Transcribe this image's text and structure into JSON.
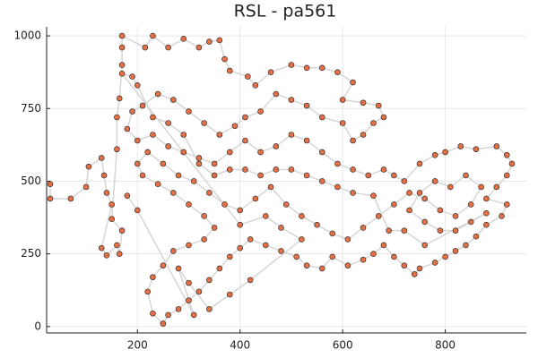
{
  "chart_data": {
    "type": "scatter",
    "title": "RSL - pa561",
    "xlim": [
      23,
      958
    ],
    "ylim": [
      -22,
      1031
    ],
    "xticks": [
      200,
      400,
      600,
      800
    ],
    "yticks": [
      0,
      250,
      500,
      750,
      1000
    ],
    "grid": true,
    "line_color": "#d6d6d6",
    "series": [
      {
        "color": "#e26f46",
        "x": [
          30,
          30,
          70,
          100,
          105,
          130,
          135,
          140,
          150,
          130,
          140,
          160,
          165,
          170,
          150,
          160,
          160,
          165,
          170,
          170,
          170,
          215,
          230,
          260,
          290,
          320,
          340,
          360,
          370,
          380,
          415,
          430,
          460,
          500,
          530,
          560,
          590,
          620,
          600,
          640,
          670,
          680,
          660,
          640,
          620,
          600,
          560,
          530,
          500,
          470,
          440,
          410,
          390,
          360,
          330,
          300,
          270,
          240,
          210,
          190,
          180,
          200,
          230,
          260,
          290,
          320,
          350,
          380,
          410,
          440,
          470,
          500,
          530,
          560,
          590,
          620,
          650,
          680,
          700,
          720,
          750,
          780,
          800,
          830,
          860,
          900,
          920,
          930,
          920,
          900,
          880,
          920,
          910,
          880,
          860,
          840,
          820,
          800,
          780,
          750,
          740,
          720,
          700,
          680,
          660,
          640,
          610,
          580,
          560,
          530,
          510,
          480,
          450,
          420,
          400,
          380,
          360,
          340,
          320,
          300,
          280,
          260,
          250,
          230,
          220,
          230,
          250,
          270,
          300,
          330,
          350,
          330,
          300,
          270,
          240,
          210,
          200,
          220,
          250,
          280,
          310,
          340,
          370,
          400,
          430,
          460,
          490,
          520,
          550,
          580,
          610,
          640,
          670,
          700,
          730,
          760,
          790,
          820,
          850,
          870,
          840,
          810,
          780,
          750,
          730,
          760,
          790,
          820,
          850,
          880,
          760,
          720,
          690,
          660,
          620,
          590,
          560,
          530,
          500,
          470,
          440,
          410,
          380,
          350,
          320,
          290,
          260,
          230,
          200,
          190,
          170,
          400,
          450,
          480,
          520,
          420,
          380,
          340,
          300,
          280,
          310,
          200,
          180
        ],
        "values": [
          490,
          440,
          440,
          480,
          550,
          580,
          520,
          460,
          420,
          270,
          245,
          280,
          250,
          330,
          370,
          610,
          720,
          785,
          900,
          960,
          1000,
          960,
          1000,
          960,
          990,
          960,
          980,
          985,
          920,
          880,
          860,
          830,
          875,
          900,
          890,
          890,
          875,
          840,
          780,
          770,
          760,
          720,
          700,
          660,
          640,
          700,
          720,
          760,
          780,
          800,
          740,
          720,
          690,
          660,
          700,
          740,
          780,
          800,
          760,
          740,
          680,
          640,
          660,
          620,
          600,
          580,
          560,
          600,
          640,
          600,
          620,
          660,
          640,
          600,
          560,
          540,
          520,
          540,
          520,
          500,
          560,
          590,
          600,
          620,
          610,
          620,
          590,
          560,
          520,
          480,
          440,
          420,
          380,
          350,
          310,
          280,
          260,
          240,
          220,
          200,
          180,
          210,
          240,
          280,
          250,
          230,
          210,
          240,
          200,
          210,
          240,
          260,
          280,
          300,
          270,
          240,
          200,
          160,
          120,
          90,
          60,
          40,
          10,
          45,
          120,
          170,
          210,
          260,
          280,
          300,
          340,
          380,
          420,
          460,
          490,
          520,
          560,
          600,
          560,
          520,
          500,
          460,
          420,
          400,
          440,
          480,
          420,
          380,
          350,
          320,
          300,
          340,
          380,
          420,
          460,
          440,
          400,
          380,
          420,
          480,
          520,
          480,
          500,
          460,
          400,
          360,
          330,
          330,
          360,
          390,
          280,
          330,
          330,
          450,
          460,
          480,
          500,
          520,
          540,
          540,
          520,
          540,
          540,
          520,
          560,
          660,
          700,
          720,
          830,
          860,
          870,
          350,
          380,
          340,
          300,
          160,
          110,
          60,
          150,
          200,
          40,
          400,
          450
        ]
      }
    ]
  }
}
